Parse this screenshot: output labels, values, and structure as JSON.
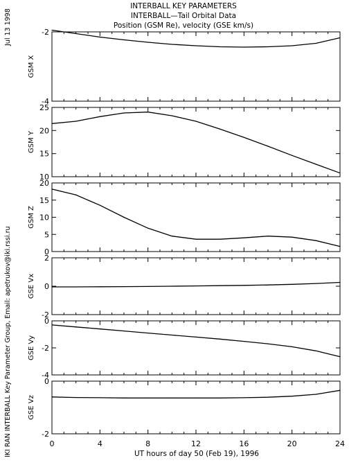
{
  "header": {
    "line1": "INTERBALL KEY PARAMETERS",
    "line2": "INTERBALL—Tail Orbital Data",
    "line3": "Position (GSM Re), velocity (GSE km/s)"
  },
  "side_labels": {
    "date": "Jul 13 1998",
    "credit": "IKI RAN INTERBALL Key Parameter Group, Email: apetrukov@iki.rssi.ru"
  },
  "chart_data": [
    {
      "type": "line",
      "ylabel": "GSM X",
      "ylim": [
        -4,
        -2
      ],
      "yticks": [
        -2,
        -4
      ],
      "x": [
        0,
        2,
        4,
        6,
        8,
        10,
        12,
        14,
        16,
        18,
        20,
        22,
        24
      ],
      "values": [
        -1.95,
        -2.05,
        -2.15,
        -2.23,
        -2.3,
        -2.36,
        -2.4,
        -2.43,
        -2.44,
        -2.43,
        -2.4,
        -2.33,
        -2.17
      ]
    },
    {
      "type": "line",
      "ylabel": "GSM Y",
      "ylim": [
        10,
        25
      ],
      "yticks": [
        25,
        20,
        15,
        10
      ],
      "x": [
        0,
        2,
        4,
        6,
        8,
        10,
        12,
        14,
        16,
        18,
        20,
        22,
        24
      ],
      "values": [
        21.5,
        22.0,
        23.0,
        23.8,
        24.0,
        23.2,
        22.0,
        20.3,
        18.5,
        16.6,
        14.6,
        12.7,
        10.8
      ]
    },
    {
      "type": "line",
      "ylabel": "GSM Z",
      "ylim": [
        0,
        20
      ],
      "yticks": [
        20,
        15,
        10,
        5,
        0
      ],
      "x": [
        0,
        2,
        4,
        6,
        8,
        10,
        12,
        14,
        16,
        18,
        20,
        22,
        24
      ],
      "values": [
        18.2,
        16.5,
        13.5,
        10.0,
        6.8,
        4.5,
        3.6,
        3.6,
        4.0,
        4.5,
        4.2,
        3.2,
        1.5
      ]
    },
    {
      "type": "line",
      "ylabel": "GSE Vx",
      "ylim": [
        -2,
        2
      ],
      "yticks": [
        2,
        0,
        -2
      ],
      "x": [
        0,
        2,
        4,
        6,
        8,
        10,
        12,
        14,
        16,
        18,
        20,
        22,
        24
      ],
      "values": [
        -0.05,
        -0.05,
        -0.04,
        -0.03,
        -0.02,
        0.0,
        0.02,
        0.04,
        0.06,
        0.09,
        0.13,
        0.19,
        0.27
      ]
    },
    {
      "type": "line",
      "ylabel": "GSE Vy",
      "ylim": [
        -4,
        0
      ],
      "yticks": [
        0,
        -2,
        -4
      ],
      "x": [
        0,
        2,
        4,
        6,
        8,
        10,
        12,
        14,
        16,
        18,
        20,
        22,
        24
      ],
      "values": [
        -0.3,
        -0.45,
        -0.6,
        -0.75,
        -0.9,
        -1.05,
        -1.2,
        -1.35,
        -1.52,
        -1.7,
        -1.92,
        -2.22,
        -2.65
      ]
    },
    {
      "type": "line",
      "ylabel": "GSE Vz",
      "ylim": [
        -2,
        0
      ],
      "yticks": [
        0,
        -2
      ],
      "x": [
        0,
        2,
        4,
        6,
        8,
        10,
        12,
        14,
        16,
        18,
        20,
        22,
        24
      ],
      "values": [
        -0.6,
        -0.62,
        -0.63,
        -0.64,
        -0.64,
        -0.64,
        -0.64,
        -0.64,
        -0.63,
        -0.61,
        -0.57,
        -0.5,
        -0.35
      ]
    }
  ],
  "x_axis": {
    "range": [
      0,
      24
    ],
    "ticks": [
      0,
      4,
      8,
      12,
      16,
      20,
      24
    ],
    "minor_step": 1,
    "label": "UT hours of day  50 (Feb 19), 1996"
  }
}
